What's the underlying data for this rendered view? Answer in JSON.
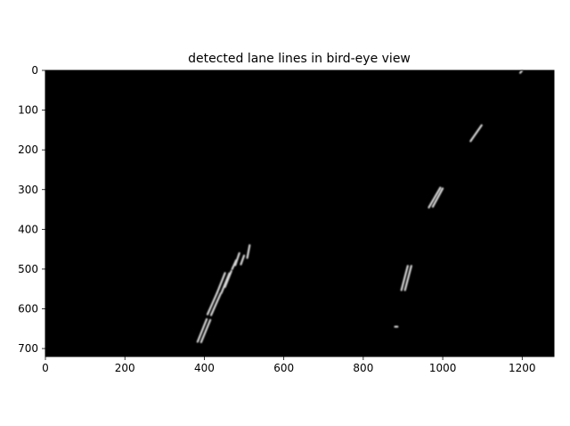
{
  "chart_data": {
    "type": "heatmap",
    "title": "detected lane lines in bird-eye view",
    "xlabel": "",
    "ylabel": "",
    "xlim": [
      0,
      1280
    ],
    "ylim": [
      720,
      0
    ],
    "x_ticks": [
      0,
      200,
      400,
      600,
      800,
      1000,
      1200
    ],
    "y_ticks": [
      0,
      100,
      200,
      300,
      400,
      500,
      600,
      700
    ],
    "background": "#000000",
    "colors": {
      "lane_pixel": "#d9d9d9",
      "axes": "#000000",
      "figure": "#ffffff"
    },
    "segments": [
      {
        "x1": 383,
        "y1": 683,
        "x2": 406,
        "y2": 626
      },
      {
        "x1": 392,
        "y1": 684,
        "x2": 415,
        "y2": 628
      },
      {
        "x1": 408,
        "y1": 614,
        "x2": 432,
        "y2": 560
      },
      {
        "x1": 417,
        "y1": 616,
        "x2": 441,
        "y2": 562
      },
      {
        "x1": 432,
        "y1": 560,
        "x2": 452,
        "y2": 510
      },
      {
        "x1": 443,
        "y1": 560,
        "x2": 463,
        "y2": 511
      },
      {
        "x1": 452,
        "y1": 545,
        "x2": 468,
        "y2": 505
      },
      {
        "x1": 470,
        "y1": 500,
        "x2": 480,
        "y2": 478
      },
      {
        "x1": 478,
        "y1": 490,
        "x2": 488,
        "y2": 460
      },
      {
        "x1": 492,
        "y1": 488,
        "x2": 500,
        "y2": 466
      },
      {
        "x1": 508,
        "y1": 472,
        "x2": 514,
        "y2": 440
      },
      {
        "x1": 896,
        "y1": 553,
        "x2": 912,
        "y2": 492
      },
      {
        "x1": 905,
        "y1": 553,
        "x2": 921,
        "y2": 492
      },
      {
        "x1": 965,
        "y1": 345,
        "x2": 994,
        "y2": 295
      },
      {
        "x1": 975,
        "y1": 343,
        "x2": 1000,
        "y2": 297
      },
      {
        "x1": 1070,
        "y1": 178,
        "x2": 1098,
        "y2": 138
      },
      {
        "x1": 1195,
        "y1": 6,
        "x2": 1200,
        "y2": 0
      },
      {
        "x1": 880,
        "y1": 645,
        "x2": 886,
        "y2": 645
      }
    ]
  }
}
